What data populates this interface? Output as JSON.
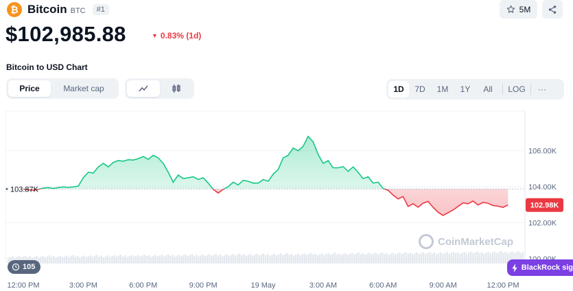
{
  "coin": {
    "icon": "bitcoin-icon",
    "icon_glyph": "₿",
    "name": "Bitcoin",
    "symbol": "BTC",
    "rank": "#1"
  },
  "watchlist": {
    "icon": "star-icon",
    "count": "5M"
  },
  "share": {
    "icon": "share-icon"
  },
  "price": "$102,985.88",
  "change": {
    "text": "0.83% (1d)",
    "direction": "down",
    "color": "#ea3943"
  },
  "chart_title": "Bitcoin to USD Chart",
  "metric_tabs": [
    {
      "label": "Price",
      "active": true
    },
    {
      "label": "Market cap",
      "active": false
    }
  ],
  "chart_style_tabs": [
    {
      "icon": "line-chart-icon",
      "active": true
    },
    {
      "icon": "candlestick-icon",
      "active": false
    }
  ],
  "range_tabs": [
    {
      "label": "1D",
      "active": true
    },
    {
      "label": "7D",
      "active": false
    },
    {
      "label": "1M",
      "active": false
    },
    {
      "label": "1Y",
      "active": false
    },
    {
      "label": "All",
      "active": false
    }
  ],
  "scale_tab": "LOG",
  "more_icon": "···",
  "history_badge": {
    "icon": "history-icon",
    "count": "105"
  },
  "news_badge": {
    "icon": "lightning-icon",
    "text": "BlackRock sig"
  },
  "watermark": "CoinMarketCap",
  "chart_data": {
    "type": "area",
    "baseline": 103870,
    "baseline_label": "103.87K",
    "current_label": "102.98K",
    "colors": {
      "up": "#16c784",
      "down": "#ea3943",
      "axis_text": "#58667e",
      "grid": "#eff2f5"
    },
    "ylim": [
      99800,
      108200
    ],
    "yticks": [
      {
        "value": 100000,
        "label": "100.00K"
      },
      {
        "value": 102000,
        "label": "102.00K"
      },
      {
        "value": 104000,
        "label": "104.00K"
      },
      {
        "value": 106000,
        "label": "106.00K"
      }
    ],
    "xlim": [
      0,
      24.5
    ],
    "xticks": [
      {
        "value": 0,
        "label": "12:00 PM"
      },
      {
        "value": 3,
        "label": "3:00 PM"
      },
      {
        "value": 6,
        "label": "6:00 PM"
      },
      {
        "value": 9,
        "label": "9:00 PM"
      },
      {
        "value": 12,
        "label": "19 May"
      },
      {
        "value": 15,
        "label": "3:00 AM"
      },
      {
        "value": 18,
        "label": "6:00 AM"
      },
      {
        "value": 21,
        "label": "9:00 AM"
      },
      {
        "value": 24,
        "label": "12:00 PM"
      }
    ],
    "x_hours": [
      0,
      0.25,
      0.5,
      0.75,
      1.0,
      1.25,
      1.5,
      1.75,
      2.0,
      2.25,
      2.5,
      2.75,
      3.0,
      3.25,
      3.5,
      3.75,
      4.0,
      4.25,
      4.5,
      4.75,
      5.0,
      5.25,
      5.5,
      5.75,
      6.0,
      6.25,
      6.5,
      6.75,
      7.0,
      7.25,
      7.5,
      7.75,
      8.0,
      8.25,
      8.5,
      8.75,
      9.0,
      9.25,
      9.5,
      9.75,
      10.0,
      10.25,
      10.5,
      10.75,
      11.0,
      11.25,
      11.5,
      11.75,
      12.0,
      12.25,
      12.5,
      12.75,
      13.0,
      13.25,
      13.5,
      13.75,
      14.0,
      14.25,
      14.5,
      14.75,
      15.0,
      15.25,
      15.5,
      15.75,
      16.0,
      16.25,
      16.5,
      16.75,
      17.0,
      17.25,
      17.5,
      17.75,
      18.0,
      18.25,
      18.5,
      18.75,
      19.0,
      19.25,
      19.5,
      19.75,
      20.0,
      20.25,
      20.5,
      20.75,
      21.0,
      21.25,
      21.5,
      21.75,
      22.0,
      22.25,
      22.5,
      22.75,
      23.0,
      23.25,
      23.5,
      23.75,
      24.0,
      24.25
    ],
    "values": [
      103870,
      103830,
      103790,
      103850,
      103920,
      103950,
      103900,
      103950,
      103990,
      103960,
      103990,
      104030,
      104500,
      104800,
      104760,
      105100,
      105300,
      105100,
      105350,
      105450,
      105420,
      105500,
      105480,
      105560,
      105680,
      105520,
      105750,
      105600,
      105300,
      104800,
      104250,
      104650,
      104450,
      104500,
      104550,
      104400,
      104500,
      104200,
      103850,
      103650,
      103850,
      104000,
      104250,
      104100,
      104350,
      104300,
      104200,
      104200,
      104400,
      104300,
      104700,
      104950,
      105600,
      105750,
      106150,
      106000,
      106250,
      106800,
      106500,
      105800,
      105300,
      105450,
      105050,
      105050,
      105120,
      104850,
      105100,
      104800,
      104450,
      104550,
      104200,
      104250,
      103900,
      103800,
      103530,
      103320,
      103450,
      102900,
      103050,
      102860,
      103080,
      103180,
      102850,
      102580,
      102400,
      102550,
      102700,
      102900,
      103100,
      103050,
      103200,
      102980,
      103120,
      103080,
      102950,
      102920,
      102850,
      102980
    ],
    "volume_hint": "Volume bars along bottom of plot"
  }
}
